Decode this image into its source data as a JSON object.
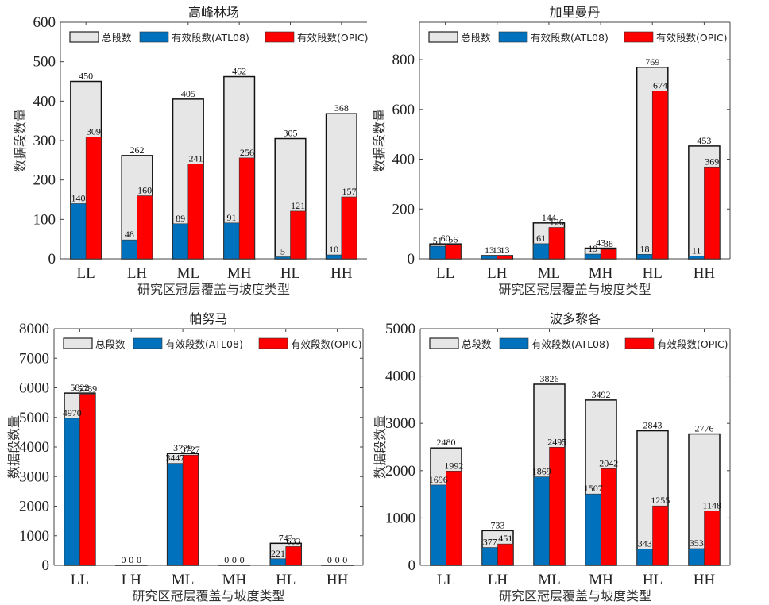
{
  "chart_data": [
    {
      "type": "bar",
      "title": "高峰林场",
      "xlabel": "研究区冠层覆盖与坡度类型",
      "ylabel": "数据段数量",
      "categories": [
        "LL",
        "LH",
        "ML",
        "MH",
        "HL",
        "HH"
      ],
      "ylim": [
        0,
        600
      ],
      "yticks": [
        0,
        100,
        200,
        300,
        400,
        500,
        600
      ],
      "grid": false,
      "legend_position": "top",
      "series": [
        {
          "name": "总段数",
          "color": "#e6e6e6",
          "values": [
            450,
            262,
            405,
            462,
            305,
            368
          ]
        },
        {
          "name": "有效段数(ATL08)",
          "color": "#0072bd",
          "values": [
            140,
            48,
            89,
            91,
            5,
            10
          ]
        },
        {
          "name": "有效段数(OPIC)",
          "color": "#ff0000",
          "values": [
            309,
            160,
            241,
            256,
            121,
            157
          ]
        }
      ]
    },
    {
      "type": "bar",
      "title": "加里曼丹",
      "xlabel": "研究区冠层覆盖与坡度类型",
      "ylabel": "数据段数量",
      "categories": [
        "LL",
        "LH",
        "ML",
        "MH",
        "HL",
        "HH"
      ],
      "ylim": [
        0,
        950
      ],
      "yticks": [
        0,
        200,
        400,
        600,
        800
      ],
      "grid": false,
      "legend_position": "top",
      "series": [
        {
          "name": "总段数",
          "color": "#e6e6e6",
          "values": [
            60,
            13,
            144,
            43,
            769,
            453
          ]
        },
        {
          "name": "有效段数(ATL08)",
          "color": "#0072bd",
          "values": [
            51,
            13,
            61,
            19,
            18,
            11
          ]
        },
        {
          "name": "有效段数(OPIC)",
          "color": "#ff0000",
          "values": [
            56,
            13,
            126,
            38,
            674,
            369
          ]
        }
      ]
    },
    {
      "type": "bar",
      "title": "帕努马",
      "xlabel": "研究区冠层覆盖与坡度类型",
      "ylabel": "数据段数量",
      "categories": [
        "LL",
        "LH",
        "ML",
        "MH",
        "HL",
        "HH"
      ],
      "ylim": [
        0,
        8000
      ],
      "yticks": [
        0,
        1000,
        2000,
        3000,
        4000,
        5000,
        6000,
        7000,
        8000
      ],
      "grid": false,
      "legend_position": "top",
      "series": [
        {
          "name": "总段数",
          "color": "#e6e6e6",
          "values": [
            5822,
            0,
            3779,
            0,
            743,
            0
          ]
        },
        {
          "name": "有效段数(ATL08)",
          "color": "#0072bd",
          "values": [
            4970,
            0,
            3447,
            0,
            221,
            0
          ]
        },
        {
          "name": "有效段数(OPIC)",
          "color": "#ff0000",
          "values": [
            5789,
            0,
            3727,
            0,
            633,
            0
          ]
        }
      ]
    },
    {
      "type": "bar",
      "title": "波多黎各",
      "xlabel": "研究区冠层覆盖与坡度类型",
      "ylabel": "数据段数量",
      "categories": [
        "LL",
        "LH",
        "ML",
        "MH",
        "HL",
        "HH"
      ],
      "ylim": [
        0,
        5000
      ],
      "yticks": [
        0,
        1000,
        2000,
        3000,
        4000,
        5000
      ],
      "grid": false,
      "legend_position": "top",
      "series": [
        {
          "name": "总段数",
          "color": "#e6e6e6",
          "values": [
            2480,
            733,
            3826,
            3492,
            2843,
            2776
          ]
        },
        {
          "name": "有效段数(ATL08)",
          "color": "#0072bd",
          "values": [
            1696,
            377,
            1869,
            1507,
            343,
            353
          ]
        },
        {
          "name": "有效段数(OPIC)",
          "color": "#ff0000",
          "values": [
            1992,
            451,
            2495,
            2042,
            1255,
            1148
          ]
        }
      ]
    }
  ]
}
